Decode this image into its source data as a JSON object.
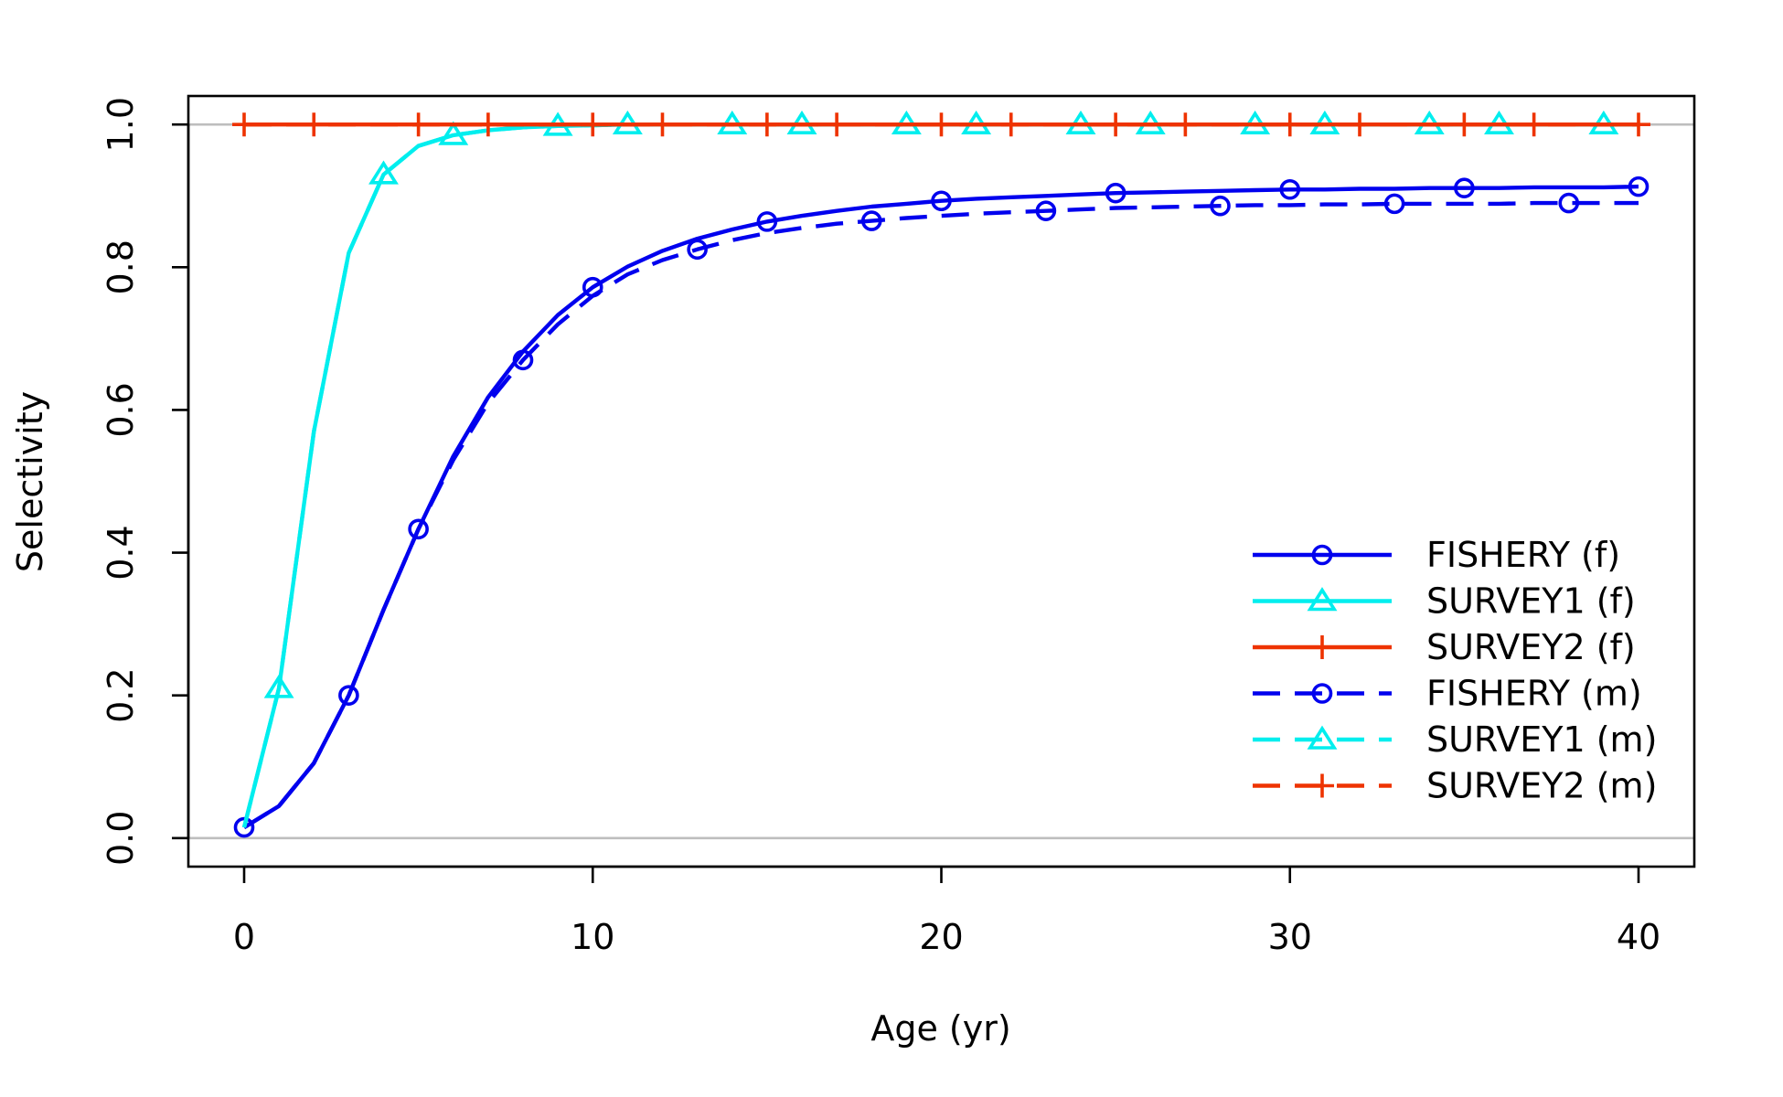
{
  "chart_data": {
    "type": "line",
    "title": "",
    "xlabel": "Age (yr)",
    "ylabel": "Selectivity",
    "xlim": [
      -1.6,
      41.6
    ],
    "ylim": [
      -0.04,
      1.04
    ],
    "xticks": [
      0,
      10,
      20,
      30,
      40
    ],
    "xtick_labels": [
      "0",
      "10",
      "20",
      "30",
      "40"
    ],
    "yticks": [
      0,
      0.2,
      0.4,
      0.6,
      0.8,
      1
    ],
    "ytick_labels": [
      "0.0",
      "0.2",
      "0.4",
      "0.6",
      "0.8",
      "1.0"
    ],
    "reference_lines": [
      0,
      1
    ],
    "legend_position": "bottom-right",
    "x": [
      0,
      1,
      2,
      3,
      4,
      5,
      6,
      7,
      8,
      9,
      10,
      11,
      12,
      13,
      14,
      15,
      16,
      17,
      18,
      19,
      20,
      21,
      22,
      23,
      24,
      25,
      26,
      27,
      28,
      29,
      30,
      31,
      32,
      33,
      34,
      35,
      36,
      37,
      38,
      39,
      40
    ],
    "series": [
      {
        "name": "FISHERY (f)",
        "color": "#0000ee",
        "line": "solid",
        "marker": "circle",
        "marker_every": 5,
        "marker_offset": 0,
        "values": [
          0.015,
          0.045,
          0.105,
          0.2,
          0.32,
          0.433,
          0.535,
          0.618,
          0.682,
          0.733,
          0.772,
          0.801,
          0.823,
          0.84,
          0.853,
          0.864,
          0.872,
          0.879,
          0.885,
          0.889,
          0.893,
          0.896,
          0.898,
          0.9,
          0.902,
          0.904,
          0.905,
          0.906,
          0.907,
          0.908,
          0.909,
          0.909,
          0.91,
          0.91,
          0.911,
          0.911,
          0.911,
          0.912,
          0.912,
          0.912,
          0.913
        ]
      },
      {
        "name": "SURVEY1 (f)",
        "color": "#00eeee",
        "line": "solid",
        "marker": "triangle",
        "marker_every": 5,
        "marker_offset": 1,
        "values": [
          0.015,
          0.21,
          0.57,
          0.82,
          0.93,
          0.97,
          0.985,
          0.992,
          0.996,
          0.998,
          0.999,
          1,
          1,
          1,
          1,
          1,
          1,
          1,
          1,
          1,
          1,
          1,
          1,
          1,
          1,
          1,
          1,
          1,
          1,
          1,
          1,
          1,
          1,
          1,
          1,
          1,
          1,
          1,
          1,
          1,
          1
        ]
      },
      {
        "name": "SURVEY2 (f)",
        "color": "#ee3300",
        "line": "solid",
        "marker": "plus",
        "marker_every": 5,
        "marker_offset": 0,
        "values": [
          1,
          1,
          1,
          1,
          1,
          1,
          1,
          1,
          1,
          1,
          1,
          1,
          1,
          1,
          1,
          1,
          1,
          1,
          1,
          1,
          1,
          1,
          1,
          1,
          1,
          1,
          1,
          1,
          1,
          1,
          1,
          1,
          1,
          1,
          1,
          1,
          1,
          1,
          1,
          1,
          1
        ]
      },
      {
        "name": "FISHERY (m)",
        "color": "#0000ee",
        "line": "dashed",
        "marker": "circle",
        "marker_every": 5,
        "marker_offset": 3,
        "values": [
          0.015,
          0.045,
          0.105,
          0.2,
          0.32,
          0.433,
          0.53,
          0.61,
          0.67,
          0.72,
          0.76,
          0.79,
          0.81,
          0.825,
          0.838,
          0.848,
          0.855,
          0.861,
          0.865,
          0.869,
          0.872,
          0.875,
          0.877,
          0.879,
          0.881,
          0.883,
          0.884,
          0.885,
          0.886,
          0.887,
          0.887,
          0.888,
          0.888,
          0.889,
          0.889,
          0.889,
          0.889,
          0.89,
          0.89,
          0.89,
          0.89
        ]
      },
      {
        "name": "SURVEY1 (m)",
        "color": "#00eeee",
        "line": "dashed",
        "marker": "triangle",
        "marker_every": 5,
        "marker_offset": 4,
        "values": [
          0.015,
          0.21,
          0.57,
          0.82,
          0.93,
          0.97,
          0.985,
          0.992,
          0.996,
          0.998,
          0.999,
          1,
          1,
          1,
          1,
          1,
          1,
          1,
          1,
          1,
          1,
          1,
          1,
          1,
          1,
          1,
          1,
          1,
          1,
          1,
          1,
          1,
          1,
          1,
          1,
          1,
          1,
          1,
          1,
          1,
          1
        ]
      },
      {
        "name": "SURVEY2 (m)",
        "color": "#ee3300",
        "line": "dashed",
        "marker": "plus",
        "marker_every": 5,
        "marker_offset": 2,
        "values": [
          1,
          1,
          1,
          1,
          1,
          1,
          1,
          1,
          1,
          1,
          1,
          1,
          1,
          1,
          1,
          1,
          1,
          1,
          1,
          1,
          1,
          1,
          1,
          1,
          1,
          1,
          1,
          1,
          1,
          1,
          1,
          1,
          1,
          1,
          1,
          1,
          1,
          1,
          1,
          1,
          1
        ]
      }
    ]
  }
}
